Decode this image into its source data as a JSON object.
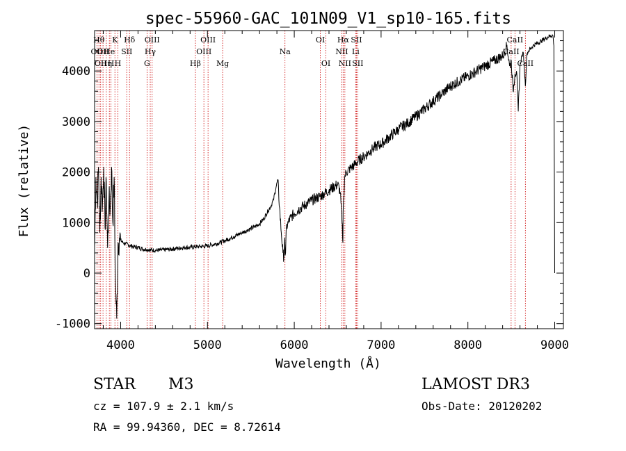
{
  "chart_data": {
    "type": "line",
    "title": "spec-55960-GAC_101N09_V1_sp10-165.fits",
    "xlabel": "Wavelength (Å)",
    "ylabel": "Flux (relative)",
    "xlim": [
      3700,
      9100
    ],
    "ylim": [
      -1100,
      4800
    ],
    "xticks": [
      4000,
      5000,
      6000,
      7000,
      8000,
      9000
    ],
    "yticks": [
      -1000,
      0,
      1000,
      2000,
      3000,
      4000
    ],
    "line_color": "#000000",
    "marker_color": "#cc0000",
    "series": [
      {
        "name": "flux",
        "x": [
          3700,
          3715,
          3730,
          3745,
          3760,
          3775,
          3790,
          3805,
          3820,
          3835,
          3850,
          3865,
          3880,
          3895,
          3910,
          3925,
          3940,
          3955,
          3970,
          3985,
          4000,
          4030,
          4060,
          4100,
          4150,
          4200,
          4250,
          4300,
          4350,
          4400,
          4450,
          4500,
          4550,
          4600,
          4650,
          4700,
          4750,
          4800,
          4850,
          4900,
          4950,
          5000,
          5050,
          5100,
          5150,
          5200,
          5250,
          5300,
          5350,
          5400,
          5450,
          5500,
          5550,
          5600,
          5650,
          5700,
          5730,
          5760,
          5790,
          5810,
          5830,
          5850,
          5870,
          5880,
          5890,
          5895,
          5900,
          5910,
          5930,
          5960,
          6000,
          6050,
          6100,
          6150,
          6200,
          6250,
          6300,
          6350,
          6400,
          6450,
          6500,
          6530,
          6550,
          6560,
          6563,
          6570,
          6580,
          6600,
          6650,
          6700,
          6750,
          6800,
          6850,
          6900,
          6950,
          7000,
          7100,
          7200,
          7300,
          7400,
          7500,
          7600,
          7700,
          7800,
          7900,
          8000,
          8100,
          8200,
          8300,
          8400,
          8450,
          8480,
          8500,
          8520,
          8542,
          8560,
          8580,
          8600,
          8620,
          8640,
          8662,
          8680,
          8700,
          8750,
          8800,
          8850,
          8900,
          8950,
          8980,
          8990,
          9000
        ],
        "y": [
          500,
          1900,
          1400,
          2100,
          800,
          1900,
          1300,
          2100,
          900,
          1800,
          500,
          1400,
          1300,
          2100,
          1000,
          1900,
          -200,
          -900,
          600,
          700,
          650,
          600,
          580,
          550,
          520,
          510,
          480,
          470,
          460,
          450,
          455,
          460,
          470,
          480,
          490,
          500,
          510,
          510,
          520,
          525,
          530,
          540,
          560,
          580,
          610,
          640,
          680,
          720,
          760,
          800,
          840,
          880,
          920,
          980,
          1080,
          1240,
          1320,
          1450,
          1700,
          1850,
          1300,
          800,
          400,
          300,
          700,
          350,
          400,
          900,
          1000,
          1100,
          1180,
          1260,
          1320,
          1380,
          1440,
          1480,
          1520,
          1580,
          1640,
          1700,
          1760,
          1600,
          1000,
          600,
          1200,
          1500,
          1900,
          2000,
          2080,
          2150,
          2240,
          2300,
          2380,
          2450,
          2520,
          2550,
          2700,
          2850,
          2960,
          3100,
          3250,
          3400,
          3550,
          3700,
          3800,
          3900,
          4000,
          4100,
          4200,
          4300,
          4500,
          4100,
          4200,
          3600,
          3950,
          4000,
          3200,
          4100,
          4300,
          4350,
          3700,
          4350,
          4400,
          4500,
          4550,
          4600,
          4650,
          4700,
          4700,
          4500,
          0
        ]
      }
    ],
    "line_markers": [
      {
        "x": 3727,
        "label": "OII",
        "tier": 2
      },
      {
        "x": 3750,
        "label": "Hθ",
        "tier": 1
      },
      {
        "x": 3770,
        "label": "OII",
        "tier": 3
      },
      {
        "x": 3797,
        "label": "OII",
        "tier": 2
      },
      {
        "x": 3835,
        "label": "Hη",
        "tier": 3
      },
      {
        "x": 3870,
        "label": "He",
        "tier": 2
      },
      {
        "x": 3889,
        "label": "H",
        "tier": 3
      },
      {
        "x": 3934,
        "label": "K",
        "tier": 1
      },
      {
        "x": 3968,
        "label": "H",
        "tier": 3
      },
      {
        "x": 4070,
        "label": "SII",
        "tier": 2
      },
      {
        "x": 4102,
        "label": "Hδ",
        "tier": 1
      },
      {
        "x": 4304,
        "label": "G",
        "tier": 3
      },
      {
        "x": 4341,
        "label": "Hγ",
        "tier": 2
      },
      {
        "x": 4363,
        "label": "OIII",
        "tier": 1
      },
      {
        "x": 4861,
        "label": "Hβ",
        "tier": 3
      },
      {
        "x": 4959,
        "label": "OIII",
        "tier": 2
      },
      {
        "x": 5007,
        "label": "OIII",
        "tier": 1
      },
      {
        "x": 5175,
        "label": "Mg",
        "tier": 3
      },
      {
        "x": 5893,
        "label": "Na",
        "tier": 2
      },
      {
        "x": 6300,
        "label": "OI",
        "tier": 1
      },
      {
        "x": 6364,
        "label": "OI",
        "tier": 3
      },
      {
        "x": 6548,
        "label": "NII",
        "tier": 2
      },
      {
        "x": 6563,
        "label": "Hα",
        "tier": 1
      },
      {
        "x": 6583,
        "label": "NII",
        "tier": 3
      },
      {
        "x": 6707,
        "label": "Li",
        "tier": 2
      },
      {
        "x": 6716,
        "label": "SII",
        "tier": 1
      },
      {
        "x": 6731,
        "label": "SII",
        "tier": 3
      },
      {
        "x": 8498,
        "label": "CaII",
        "tier": 2
      },
      {
        "x": 8542,
        "label": "CaII",
        "tier": 1
      },
      {
        "x": 8662,
        "label": "CaII",
        "tier": 3
      }
    ]
  },
  "info": {
    "class": "STAR",
    "subclass": "M3",
    "survey": "LAMOST DR3",
    "redshift": "cz =  107.9 ± 2.1 km/s",
    "obsdate": "Obs-Date: 20120202",
    "coords": "RA =  99.94360, DEC =   8.72614"
  }
}
